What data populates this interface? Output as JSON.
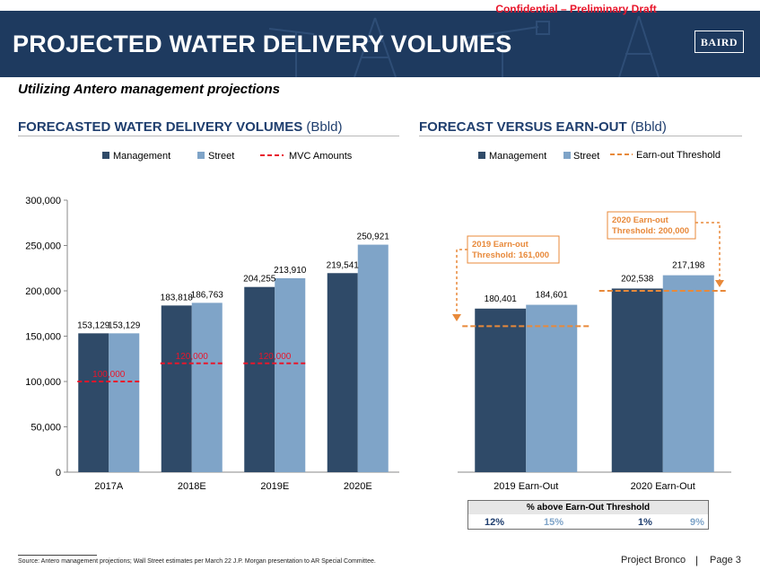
{
  "confidential": "Confidential – Preliminary Draft",
  "header": {
    "title": "PROJECTED WATER DELIVERY VOLUMES",
    "logo": "BAIRD"
  },
  "subtitle": "Utilizing Antero management projections",
  "left_section": {
    "title": "FORECASTED WATER DELIVERY VOLUMES",
    "unit": "(Bbld)"
  },
  "right_section": {
    "title": "FORECAST VERSUS EARN-OUT",
    "unit": "(Bbld)"
  },
  "colors": {
    "management": "#2f4a68",
    "street": "#7fa4c8",
    "mvc": "#e8162b",
    "threshold": "#e8893a",
    "header": "#1e3a5f",
    "title": "#1f3e6e"
  },
  "chart_data": [
    {
      "type": "bar",
      "title": "FORECASTED WATER DELIVERY VOLUMES (Bbld)",
      "categories": [
        "2017A",
        "2018E",
        "2019E",
        "2020E"
      ],
      "series": [
        {
          "name": "Management",
          "values": [
            153129,
            183818,
            204255,
            219541
          ],
          "labels": [
            "153,129",
            "183,818",
            "204,255",
            "219,541"
          ]
        },
        {
          "name": "Street",
          "values": [
            153129,
            186763,
            213910,
            250921
          ],
          "labels": [
            "153,129",
            "186,763",
            "213,910",
            "250,921"
          ]
        }
      ],
      "mvc": {
        "name": "MVC Amounts",
        "values": [
          100000,
          120000,
          120000
        ],
        "labels": [
          "100,000",
          "120,000",
          "120,000"
        ]
      },
      "ylim": [
        0,
        300000
      ],
      "yticks": [
        0,
        50000,
        100000,
        150000,
        200000,
        250000,
        300000
      ],
      "ytick_labels": [
        "0",
        "50,000",
        "100,000",
        "150,000",
        "200,000",
        "250,000",
        "300,000"
      ],
      "legend": [
        "Management",
        "Street",
        "MVC Amounts"
      ]
    },
    {
      "type": "bar",
      "title": "FORECAST VERSUS EARN-OUT (Bbld)",
      "categories": [
        "2019 Earn-Out",
        "2020 Earn-Out"
      ],
      "series": [
        {
          "name": "Management",
          "values": [
            180401,
            202538
          ],
          "labels": [
            "180,401",
            "202,538"
          ]
        },
        {
          "name": "Street",
          "values": [
            184601,
            217198
          ],
          "labels": [
            "184,601",
            "217,198"
          ]
        }
      ],
      "thresholds": {
        "name": "Earn-out Threshold",
        "values": [
          161000,
          200000
        ],
        "callouts": [
          {
            "line1": "2019 Earn-out",
            "line2": "Threshold: 161,000"
          },
          {
            "line1": "2020 Earn-out",
            "line2": "Threshold: 200,000"
          }
        ]
      },
      "ylim": [
        0,
        300000
      ],
      "legend": [
        "Management",
        "Street",
        "Earn-out Threshold"
      ]
    }
  ],
  "pct_table": {
    "title": "% above Earn-Out Threshold",
    "values": [
      "12%",
      "15%",
      "1%",
      "9%"
    ]
  },
  "footnote": "Source: Antero management projections; Wall Street estimates per March 22 J.P. Morgan presentation to AR Special Committee.",
  "footer": {
    "project": "Project Bronco",
    "page": "Page 3"
  }
}
